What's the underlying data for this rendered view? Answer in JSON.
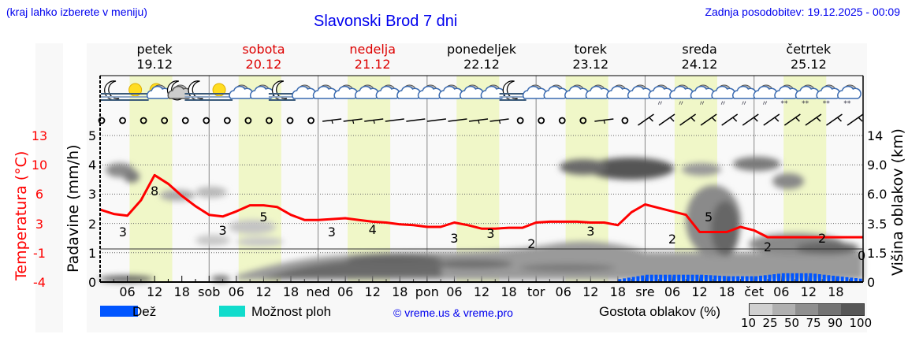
{
  "header": {
    "menu_hint": "(kraj lahko izberete v meniju)",
    "title": "Slavonski Brod 7 dni",
    "last_update": "Zadnja posodobitev: 19.12.2025 - 00:09"
  },
  "days": [
    {
      "name": "petek",
      "date": "19.12",
      "weekend": false
    },
    {
      "name": "sobota",
      "date": "20.12",
      "weekend": true
    },
    {
      "name": "nedelja",
      "date": "21.12",
      "weekend": true
    },
    {
      "name": "ponedeljek",
      "date": "22.12",
      "weekend": false
    },
    {
      "name": "torek",
      "date": "23.12",
      "weekend": false
    },
    {
      "name": "sreda",
      "date": "24.12",
      "weekend": false
    },
    {
      "name": "četrtek",
      "date": "25.12",
      "weekend": false
    }
  ],
  "x_ticks": [
    "06",
    "12",
    "18",
    "sob",
    "06",
    "12",
    "18",
    "ned",
    "06",
    "12",
    "18",
    "pon",
    "06",
    "12",
    "18",
    "tor",
    "06",
    "12",
    "18",
    "sre",
    "06",
    "12",
    "18",
    "čet",
    "06",
    "12",
    "18"
  ],
  "axes": {
    "temperature_label": "Temperatura (°C)",
    "temperature_ticks": [
      "13",
      "10",
      "6",
      "3",
      "-1",
      "-4"
    ],
    "precip_label": "Padavine (mm/h)",
    "precip_ticks": [
      "5",
      "4",
      "3",
      "2",
      "1",
      "0"
    ],
    "cloud_label": "Višina oblakov (km)",
    "cloud_ticks": [
      "14",
      "9.0",
      "6.0",
      "3.5",
      "1.5",
      "0"
    ],
    "zero_marker": "0"
  },
  "legend": {
    "rain_label": "Dež",
    "rain_color": "#0055ff",
    "showers_label": "Možnost ploh",
    "showers_color": "#11dccc",
    "copyright": "© vreme.us & vreme.pro",
    "cloud_density_label": "Gostota oblakov (%)",
    "cloud_density_scale": [
      "10",
      "25",
      "50",
      "75",
      "90",
      "100"
    ],
    "cloud_density_colors": [
      "#d0d0d0",
      "#b0b0b0",
      "#8f8f8f",
      "#737373",
      "#575757"
    ]
  },
  "colors": {
    "temperature_line": "#ff0000",
    "daylight_band": "#f0f7c8",
    "title_blue": "#0000ee",
    "weekend_red": "#dd0000"
  },
  "chart_data": {
    "type": "line",
    "title": "Slavonski Brod 7 dni",
    "xlabel": "",
    "ylabel": "Temperatura (°C)",
    "ylim": [
      -4,
      13
    ],
    "x_range_hours": [
      0,
      168
    ],
    "series": [
      {
        "name": "Temperatura (°C)",
        "x_hours": [
          0,
          3,
          6,
          9,
          12,
          15,
          18,
          21,
          24,
          27,
          30,
          33,
          36,
          39,
          42,
          45,
          48,
          51,
          54,
          57,
          60,
          63,
          66,
          69,
          72,
          75,
          78,
          81,
          84,
          87,
          90,
          93,
          96,
          99,
          102,
          105,
          108,
          111,
          114,
          117,
          120,
          123,
          126,
          129,
          132,
          135,
          138,
          141,
          144,
          147,
          150,
          153,
          156,
          159,
          162,
          165,
          168
        ],
        "values": [
          4.4,
          3.9,
          3.7,
          5.5,
          8.4,
          7.4,
          6.0,
          4.8,
          3.8,
          3.6,
          4.2,
          4.9,
          4.9,
          4.7,
          3.8,
          3.2,
          3.2,
          3.3,
          3.4,
          3.2,
          3.0,
          2.9,
          2.7,
          2.6,
          2.4,
          2.4,
          2.9,
          2.6,
          2.2,
          2.2,
          2.3,
          2.3,
          2.9,
          3.0,
          3.0,
          3.0,
          2.9,
          2.9,
          2.6,
          4.1,
          5.0,
          4.6,
          4.2,
          3.8,
          1.8,
          1.8,
          1.8,
          2.4,
          2.0,
          1.2,
          1.2,
          1.2,
          1.2,
          1.2,
          1.2,
          1.2,
          1.2
        ]
      },
      {
        "name": "Padavine (mm/h) - Dež",
        "x_hours": [
          114,
          120,
          126,
          132,
          138,
          144,
          150,
          156,
          162,
          168
        ],
        "values": [
          0.1,
          0.25,
          0.25,
          0.25,
          0.2,
          0.2,
          0.3,
          0.3,
          0.2,
          0.1
        ]
      }
    ],
    "temperature_labels": [
      {
        "hour": 5,
        "value": "3"
      },
      {
        "hour": 12,
        "value": "8"
      },
      {
        "hour": 27,
        "value": "3"
      },
      {
        "hour": 36,
        "value": "5"
      },
      {
        "hour": 51,
        "value": "3"
      },
      {
        "hour": 60,
        "value": "4"
      },
      {
        "hour": 78,
        "value": "3"
      },
      {
        "hour": 86,
        "value": "3"
      },
      {
        "hour": 95,
        "value": "2"
      },
      {
        "hour": 108,
        "value": "3"
      },
      {
        "hour": 126,
        "value": "2"
      },
      {
        "hour": 134,
        "value": "5"
      },
      {
        "hour": 147,
        "value": "2"
      },
      {
        "hour": 159,
        "value": "2"
      }
    ],
    "secondary_axes": {
      "precip_ylim": [
        0,
        5
      ],
      "cloud_height_ticks_km": [
        0,
        1.5,
        3.5,
        6.0,
        9.0,
        14
      ]
    },
    "legend_position": "bottom",
    "grid": true
  }
}
